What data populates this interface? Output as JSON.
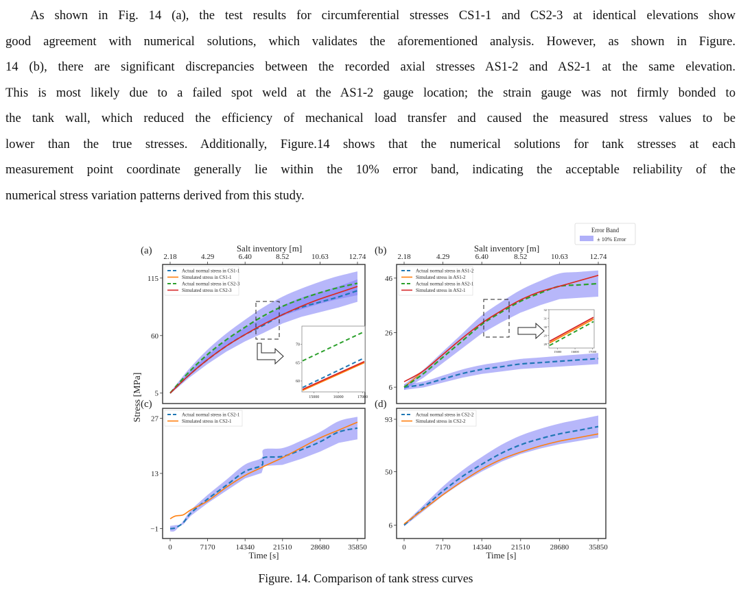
{
  "paragraph": {
    "lines": [
      "As shown in Fig. 14 (a), the test results for circumferential stresses CS1-1 and CS2-3 at identical elevations show",
      "good agreement with numerical solutions, which validates the aforementioned analysis. However, as shown in Figure.",
      "14 (b), there are significant discrepancies between the recorded axial stresses AS1-2 and AS2-1 at the same elevation.",
      "This is most likely due to a failed spot weld at the AS1-2 gauge location; the strain gauge was not firmly bonded to",
      "the tank wall, which reduced the efficiency of mechanical load transfer and caused the measured stress values to be",
      "lower than the true stresses. Additionally, Figure.14 shows that the numerical solutions for tank stresses at each",
      "measurement point coordinate generally lie within the 10% error band, indicating the acceptable reliability of the",
      "numerical stress variation patterns derived from this study."
    ]
  },
  "figure": {
    "caption": "Figure. 14. Comparison of tank stress curves",
    "shared_ylabel": "Stress [MPa]",
    "error_band_legend": {
      "title": "Error Band",
      "label": "± 10% Error",
      "color": "#7b7bf5"
    }
  },
  "chart_data": [
    {
      "id": "a",
      "panel_label": "(a)",
      "type": "line",
      "top_axis_label": "Salt inventory [m]",
      "top_ticks": [
        "2.18",
        "4.29",
        "6.40",
        "8.52",
        "10.63",
        "12.74"
      ],
      "x": [
        0,
        3585,
        7170,
        10755,
        14340,
        17925,
        21510,
        25095,
        28680,
        32265,
        35850
      ],
      "ylim": [
        -5,
        128
      ],
      "yticks": [
        "5",
        "60",
        "115"
      ],
      "ytick_values": [
        5,
        60,
        115
      ],
      "band_pct": 10,
      "series": [
        {
          "name": "Actual normal stress in CS1-1",
          "color": "#1f77b4",
          "dash": true,
          "band": true,
          "values": [
            5,
            22,
            37,
            50,
            61,
            70,
            80,
            87,
            92,
            97,
            103
          ]
        },
        {
          "name": "Simulated stress in CS1-1",
          "color": "#ff7f0e",
          "dash": false,
          "band": false,
          "values": [
            5,
            22,
            37,
            50,
            61,
            71,
            80,
            88,
            95,
            101,
            107
          ]
        },
        {
          "name": "Actual normal stress in CS2-3",
          "color": "#2ca02c",
          "dash": true,
          "band": true,
          "values": [
            5,
            25,
            42,
            56,
            68,
            79,
            88,
            95,
            101,
            106,
            110
          ]
        },
        {
          "name": "Simulated stress in CS2-3",
          "color": "#d62728",
          "dash": false,
          "band": false,
          "values": [
            5,
            22,
            37,
            50,
            61,
            71,
            80,
            88,
            95,
            101,
            107
          ]
        }
      ],
      "inset": {
        "xticks": [
          "15000",
          "16000",
          "17000"
        ],
        "xrange": [
          14500,
          17100
        ],
        "yticks": [
          "60",
          "65",
          "70"
        ],
        "yrange": [
          57,
          75
        ],
        "series": [
          {
            "color": "#2ca02c",
            "dash": true,
            "values": [
              65.5,
              73.5
            ]
          },
          {
            "color": "#1f77b4",
            "dash": true,
            "values": [
              58.2,
              66.3
            ]
          },
          {
            "color": "#ff7f0e",
            "dash": false,
            "values": [
              57.4,
              65.0
            ]
          },
          {
            "color": "#d62728",
            "dash": false,
            "values": [
              57.7,
              65.3
            ]
          }
        ]
      }
    },
    {
      "id": "b",
      "panel_label": "(b)",
      "type": "line",
      "top_axis_label": "Salt inventory [m]",
      "top_ticks": [
        "2.18",
        "4.29",
        "6.40",
        "8.52",
        "10.63",
        "12.74"
      ],
      "x": [
        0,
        3585,
        7170,
        10755,
        14340,
        17925,
        21510,
        25095,
        28680,
        32265,
        35850
      ],
      "ylim": [
        0,
        51
      ],
      "yticks": [
        "6",
        "26",
        "46"
      ],
      "ytick_values": [
        6,
        26,
        46
      ],
      "band_pct": 10,
      "series": [
        {
          "name": "Actual normal stress in AS1-2",
          "color": "#1f77b4",
          "dash": true,
          "band": true,
          "values": [
            6,
            7,
            9,
            11,
            12.5,
            13.5,
            14.5,
            15,
            15.5,
            16,
            16.5
          ]
        },
        {
          "name": "Simulated stress in AS1-2",
          "color": "#ff7f0e",
          "dash": false,
          "band": false,
          "values": [
            6,
            12,
            18,
            24,
            29.5,
            34,
            38,
            41,
            43,
            45,
            47
          ]
        },
        {
          "name": "Actual normal stress in AS2-1",
          "color": "#2ca02c",
          "dash": true,
          "band": true,
          "values": [
            6,
            11,
            17,
            23,
            29,
            33.5,
            37.5,
            40.5,
            43,
            43.5,
            44
          ]
        },
        {
          "name": "Simulated stress in AS2-1",
          "color": "#d62728",
          "dash": false,
          "band": false,
          "values": [
            8,
            12,
            18,
            24,
            29.5,
            34,
            38,
            41,
            43,
            45,
            47
          ]
        }
      ],
      "inset": {
        "xticks": [
          "15000",
          "16000",
          "17000"
        ],
        "xrange": [
          14500,
          17100
        ],
        "yticks": [
          "28",
          "29",
          "30",
          "31",
          "32"
        ],
        "yrange": [
          27.5,
          32
        ],
        "series": [
          {
            "color": "#2ca02c",
            "dash": true,
            "values": [
              27.8,
              30.6
            ]
          },
          {
            "color": "#ff7f0e",
            "dash": false,
            "values": [
              28.1,
              30.9
            ]
          },
          {
            "color": "#d62728",
            "dash": false,
            "values": [
              28.3,
              31.1
            ]
          }
        ]
      }
    },
    {
      "id": "c",
      "panel_label": "(c)",
      "type": "line",
      "xlabel": "Time [s]",
      "xticks": [
        "0",
        "7170",
        "14340",
        "21510",
        "28680",
        "35850"
      ],
      "xtick_values": [
        0,
        7170,
        14340,
        21510,
        28680,
        35850
      ],
      "x": [
        0,
        1000,
        2500,
        4000,
        7170,
        10755,
        14340,
        17500,
        17925,
        21510,
        25095,
        28680,
        32265,
        35850
      ],
      "ylim": [
        -3.5,
        29.5
      ],
      "yticks": [
        "-1",
        "13",
        "27"
      ],
      "ytick_values": [
        -1,
        13,
        27
      ],
      "band_pct": 10,
      "series": [
        {
          "name": "Actual normal stress in CS2-1",
          "color": "#1f77b4",
          "dash": true,
          "band": true,
          "values": [
            -1,
            -0.8,
            0.5,
            3,
            6.5,
            10,
            13.5,
            15,
            17,
            17.3,
            19,
            21,
            23.5,
            24.5
          ]
        },
        {
          "name": "Simulated stress in CS2-1",
          "color": "#ff7f0e",
          "dash": false,
          "band": false,
          "values": [
            1.5,
            2.2,
            2.5,
            3.8,
            6,
            9.5,
            12.5,
            14.5,
            14.8,
            17,
            19.5,
            22,
            24,
            26
          ]
        }
      ]
    },
    {
      "id": "d",
      "panel_label": "(d)",
      "type": "line",
      "xlabel": "Time [s]",
      "xticks": [
        "0",
        "7170",
        "14340",
        "21510",
        "28680",
        "35850"
      ],
      "xtick_values": [
        0,
        7170,
        14340,
        21510,
        28680,
        35850
      ],
      "x": [
        0,
        3585,
        7170,
        10755,
        14340,
        17925,
        21510,
        25095,
        28680,
        32265,
        35850
      ],
      "ylim": [
        -5,
        102
      ],
      "yticks": [
        "6",
        "50",
        "93"
      ],
      "ytick_values": [
        6,
        50,
        93
      ],
      "band_pct": 10,
      "series": [
        {
          "name": "Actual normal stress in CS2-2",
          "color": "#1f77b4",
          "dash": true,
          "band": true,
          "values": [
            6,
            20,
            34,
            46,
            56,
            65,
            72,
            77,
            81,
            84,
            87
          ]
        },
        {
          "name": "Simulated stress in CS2-2",
          "color": "#ff7f0e",
          "dash": false,
          "band": false,
          "values": [
            7,
            19,
            31,
            42,
            52,
            60,
            66,
            71,
            75,
            78,
            81
          ]
        }
      ]
    }
  ]
}
